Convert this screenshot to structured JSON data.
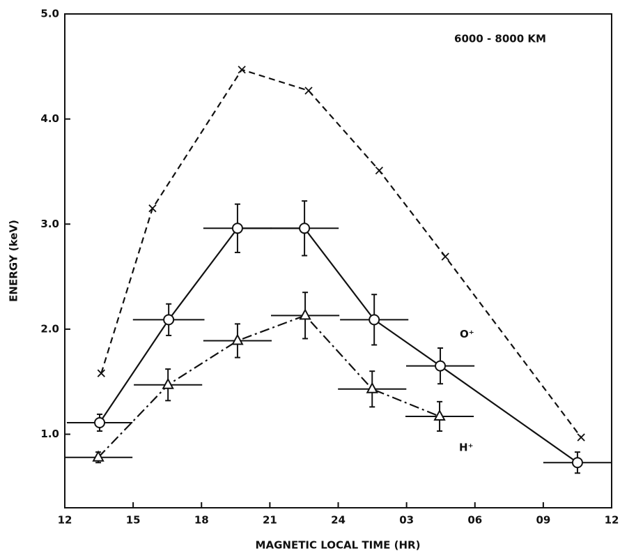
{
  "chart_data": {
    "type": "line",
    "xlabel": "MAGNETIC LOCAL TIME (HR)",
    "ylabel": "ENERGY (keV)",
    "annotation": "6000 - 8000 KM",
    "xlim": [
      12,
      36
    ],
    "ylim": [
      0.3,
      5.0
    ],
    "xticks": [
      12,
      15,
      18,
      21,
      24,
      {
        "value": 27,
        "label": "03"
      },
      {
        "value": 30,
        "label": "06"
      },
      {
        "value": 33,
        "label": "09"
      },
      {
        "value": 36,
        "label": "12"
      }
    ],
    "yticks": [
      {
        "value": 1.0,
        "label": "1.0"
      },
      {
        "value": 2.0,
        "label": "2.0"
      },
      {
        "value": 3.0,
        "label": "3.0"
      },
      {
        "value": 4.0,
        "label": "4.0"
      },
      {
        "value": 5.0,
        "label": "5.0"
      }
    ],
    "series": [
      {
        "color": "#111111",
        "marker": "x",
        "dash": "dashed",
        "x": [
          13.6,
          15.85,
          19.77,
          22.7,
          25.8,
          28.7,
          34.66
        ],
        "values": [
          1.58,
          3.15,
          4.47,
          4.27,
          3.51,
          2.69,
          0.97
        ]
      },
      {
        "name": "O⁺",
        "color": "#111111",
        "marker": "circle",
        "dash": "solid",
        "x": [
          13.53,
          16.56,
          19.58,
          22.52,
          25.58,
          28.48,
          34.5
        ],
        "values": [
          1.11,
          2.09,
          2.96,
          2.96,
          2.09,
          1.65,
          0.73
        ],
        "xerr": [
          1.44,
          1.57,
          1.5,
          1.5,
          1.5,
          1.5,
          1.5
        ],
        "yerr": [
          0.08,
          0.15,
          0.23,
          0.26,
          0.24,
          0.17,
          0.1
        ]
      },
      {
        "name": "H⁺",
        "color": "#111111",
        "marker": "triangle",
        "dash": "dashdot",
        "x": [
          13.47,
          16.53,
          19.58,
          22.55,
          25.49,
          28.45
        ],
        "values": [
          0.78,
          1.47,
          1.89,
          2.13,
          1.43,
          1.17
        ],
        "xerr": [
          1.5,
          1.5,
          1.5,
          1.5,
          1.5,
          1.5
        ],
        "yerr": [
          0.05,
          0.15,
          0.16,
          0.22,
          0.17,
          0.14
        ]
      }
    ]
  }
}
